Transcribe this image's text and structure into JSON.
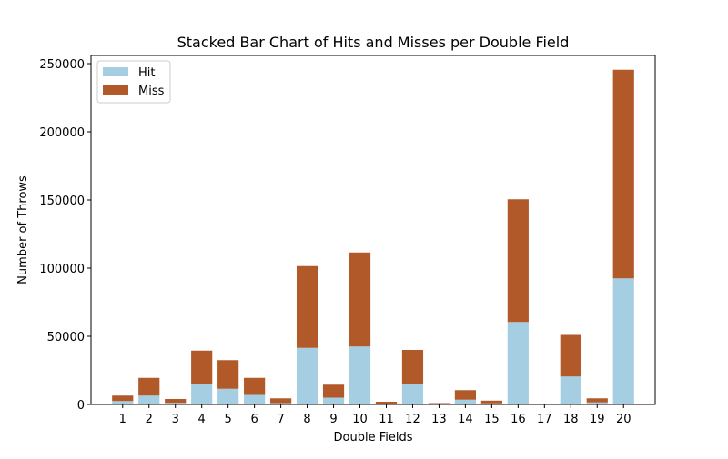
{
  "chart_data": {
    "type": "bar",
    "stacked": true,
    "title": "Stacked Bar Chart of Hits and Misses per Double Field",
    "xlabel": "Double Fields",
    "ylabel": "Number of Throws",
    "categories": [
      "1",
      "2",
      "3",
      "4",
      "5",
      "6",
      "7",
      "8",
      "9",
      "10",
      "11",
      "12",
      "13",
      "14",
      "15",
      "16",
      "17",
      "18",
      "19",
      "20"
    ],
    "ylim": [
      0,
      256000
    ],
    "yticks": [
      0,
      50000,
      100000,
      150000,
      200000,
      250000
    ],
    "ytick_labels": [
      "0",
      "50000",
      "100000",
      "150000",
      "200000",
      "250000"
    ],
    "grid": false,
    "legend_position": "top-left",
    "series": [
      {
        "name": "Hit",
        "color": "#a6cee3",
        "values": [
          2500,
          6500,
          1200,
          15000,
          11500,
          7000,
          1000,
          41500,
          5000,
          42500,
          500,
          15000,
          300,
          3500,
          800,
          60500,
          0,
          20500,
          1500,
          92500
        ]
      },
      {
        "name": "Miss",
        "color": "#b15928",
        "values": [
          4000,
          13000,
          2800,
          24500,
          21000,
          12500,
          3500,
          60000,
          9500,
          69000,
          1500,
          25000,
          700,
          7000,
          2000,
          90000,
          0,
          30500,
          3000,
          153000
        ]
      }
    ]
  }
}
